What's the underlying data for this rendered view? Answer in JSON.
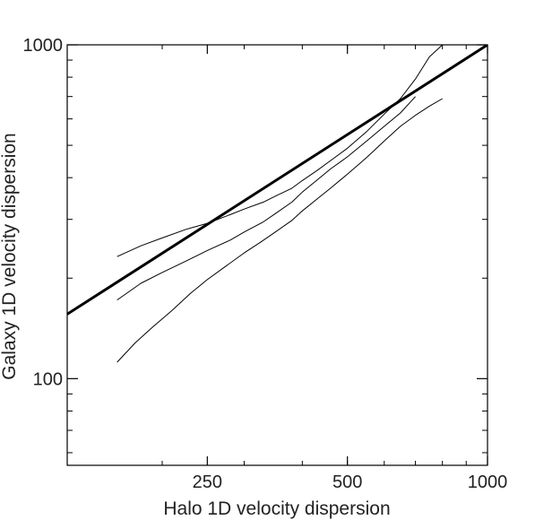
{
  "chart_data": {
    "type": "line",
    "title": "",
    "xlabel": "Halo 1D velocity dispersion",
    "ylabel": "Galaxy 1D velocity dispersion",
    "x_scale": "log",
    "y_scale": "log",
    "xlim": [
      125,
      1000
    ],
    "ylim": [
      55,
      1000
    ],
    "x_ticks": [
      250,
      500,
      1000
    ],
    "y_ticks": [
      100,
      1000
    ],
    "grid": false,
    "legend": "none",
    "series": [
      {
        "style": "thick",
        "color": "#000000",
        "x": [
          125,
          1000
        ],
        "y": [
          156,
          1000
        ]
      },
      {
        "style": "thin",
        "color": "#000000",
        "x": [
          160,
          180,
          200,
          225,
          250,
          280,
          300,
          330,
          350,
          380,
          400,
          430,
          460,
          500,
          550,
          600,
          650,
          700,
          750,
          800
        ],
        "y": [
          232,
          250,
          264,
          280,
          292,
          310,
          322,
          338,
          352,
          372,
          392,
          420,
          450,
          490,
          550,
          620,
          690,
          790,
          920,
          1000
        ]
      },
      {
        "style": "thin",
        "color": "#000000",
        "x": [
          160,
          180,
          200,
          225,
          250,
          280,
          300,
          330,
          350,
          380,
          400,
          430,
          460,
          500,
          550,
          600,
          650,
          700
        ],
        "y": [
          172,
          193,
          208,
          225,
          242,
          260,
          275,
          295,
          312,
          338,
          362,
          393,
          425,
          462,
          515,
          570,
          625,
          700
        ]
      },
      {
        "style": "thin",
        "color": "#000000",
        "x": [
          160,
          175,
          190,
          210,
          230,
          250,
          275,
          300,
          325,
          350,
          380,
          400,
          430,
          460,
          500,
          550,
          600,
          650,
          700,
          750,
          800
        ],
        "y": [
          112,
          128,
          142,
          160,
          180,
          198,
          218,
          238,
          256,
          275,
          298,
          318,
          345,
          372,
          410,
          460,
          515,
          570,
          615,
          655,
          690
        ]
      }
    ]
  }
}
